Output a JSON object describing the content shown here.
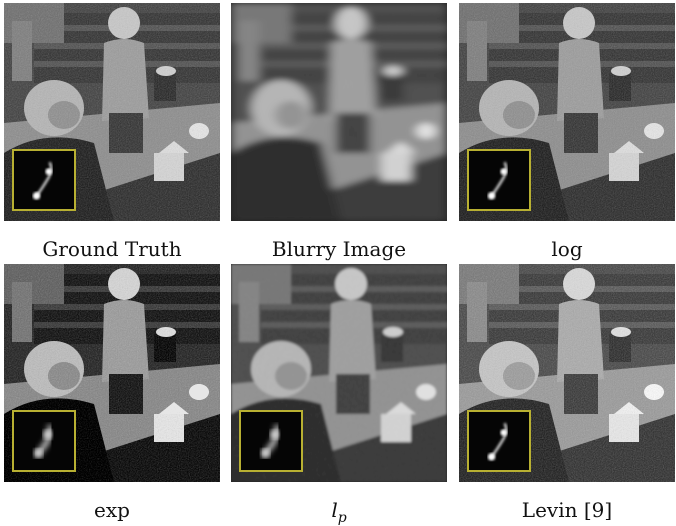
{
  "figure": {
    "panels": [
      {
        "id": "gt",
        "caption": "Ground Truth",
        "style": "sharp"
      },
      {
        "id": "blurry",
        "caption": "Blurry Image",
        "style": "blurry"
      },
      {
        "id": "log",
        "caption": "log",
        "style": "sharp"
      },
      {
        "id": "exp",
        "caption": "exp",
        "style": "ringing"
      },
      {
        "id": "lp",
        "caption": "l_p",
        "caption_base": "l",
        "caption_sub": "p",
        "style": "soft"
      },
      {
        "id": "levin",
        "caption": "Levin [9]",
        "style": "sharp"
      }
    ],
    "inset_color": "#b8b032"
  }
}
